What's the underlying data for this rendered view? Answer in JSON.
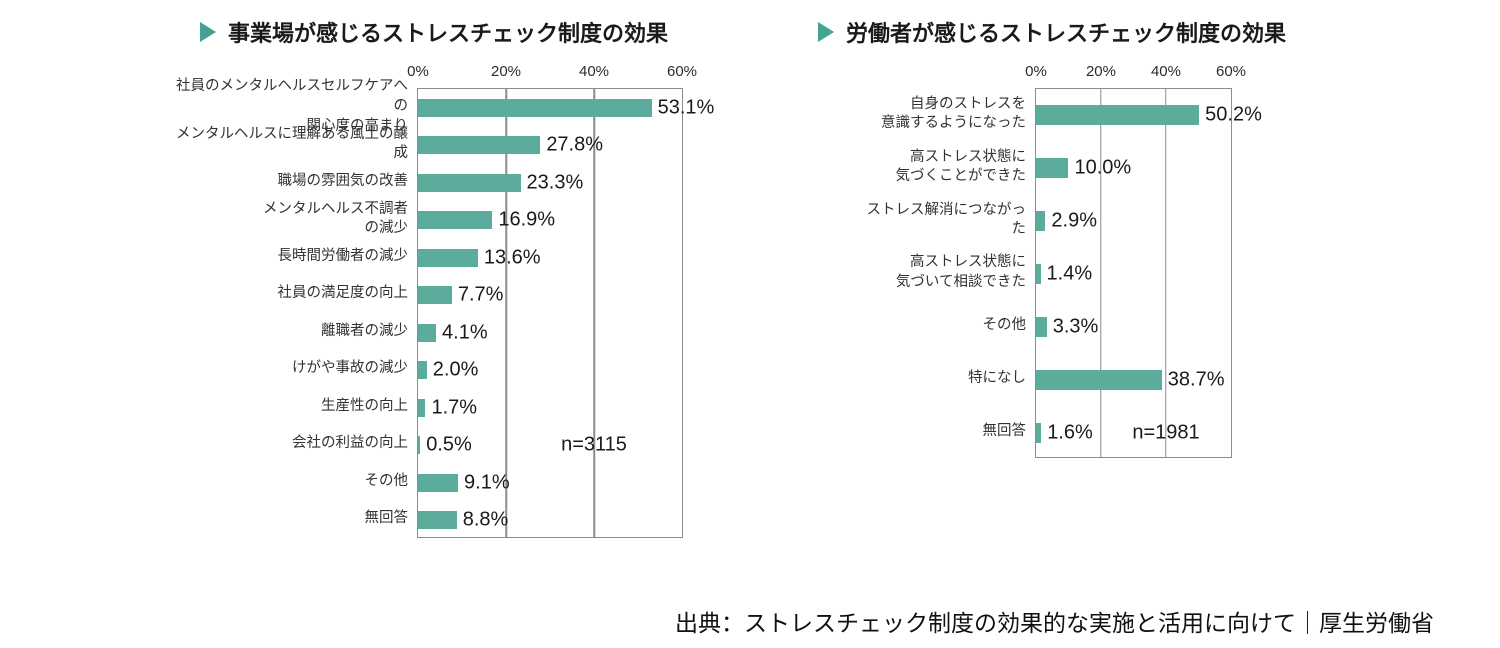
{
  "source_caption": "出典：ストレスチェック制度の効果的な実施と活用に向けて｜厚生労働省",
  "colors": {
    "bar": "#5CAC9D",
    "accent": "#43A294",
    "grid": "#8C8C8C",
    "title_text": "#1A1A1A",
    "label_text": "#333333"
  },
  "chart_data": [
    {
      "type": "bar",
      "orientation": "horizontal",
      "title": "事業場が感じるストレスチェック制度の効果",
      "xlim": [
        0,
        60
      ],
      "x_ticks": [
        "0%",
        "20%",
        "40%",
        "60%"
      ],
      "grid": true,
      "categories": [
        "社員のメンタルヘルスセルフケアへの\n関心度の高まり",
        "メンタルヘルスに理解ある風土の醸成",
        "職場の雰囲気の改善",
        "メンタルヘルス不調者\nの減少",
        "長時間労働者の減少",
        "社員の満足度の向上",
        "離職者の減少",
        "けがや事故の減少",
        "生産性の向上",
        "会社の利益の向上",
        "その他",
        "無回答"
      ],
      "values": [
        53.1,
        27.8,
        23.3,
        16.9,
        13.6,
        7.7,
        4.1,
        2.0,
        1.7,
        0.5,
        9.1,
        8.8
      ],
      "value_labels": [
        "53.1%",
        "27.8%",
        "23.3%",
        "16.9%",
        "13.6%",
        "7.7%",
        "4.1%",
        "2.0%",
        "1.7%",
        "0.5%",
        "9.1%",
        "8.8%"
      ],
      "sample_size": {
        "text": "n=3115",
        "row": 9,
        "x_pct": 66.67
      }
    },
    {
      "type": "bar",
      "orientation": "horizontal",
      "title": "労働者が感じるストレスチェック制度の効果",
      "xlim": [
        0,
        60
      ],
      "x_ticks": [
        "0%",
        "20%",
        "40%",
        "60%"
      ],
      "grid": true,
      "categories": [
        "自身のストレスを\n意識するようになった",
        "高ストレス状態に\n気づくことができた",
        "ストレス解消につながった",
        "高ストレス状態に\n気づいて相談できた",
        "その他",
        "特になし",
        "無回答"
      ],
      "values": [
        50.2,
        10.0,
        2.9,
        1.4,
        3.3,
        38.7,
        1.6
      ],
      "value_labels": [
        "50.2%",
        "10.0%",
        "2.9%",
        "1.4%",
        "3.3%",
        "38.7%",
        "1.6%"
      ],
      "sample_size": {
        "text": "n=1981",
        "row": 6,
        "x_pct": 66.67
      }
    }
  ]
}
